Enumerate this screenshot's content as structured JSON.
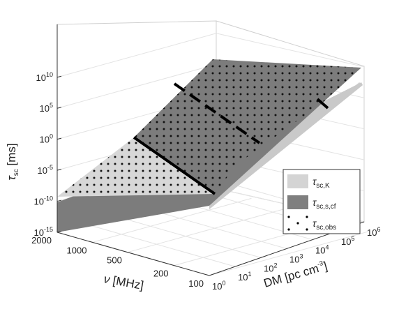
{
  "chart_data": {
    "type": "surface3d",
    "title": "",
    "axes": {
      "x": {
        "label_symbol": "ν",
        "label_rest": " [MHz]",
        "ticks": [
          "2000",
          "1000",
          "500",
          "200",
          "100"
        ],
        "range": [
          100,
          2000
        ],
        "scale": "log"
      },
      "y": {
        "label_main": "DM [pc cm",
        "label_sup": "-3",
        "label_end": "]",
        "ticks": [
          {
            "base": "10",
            "exp": "0"
          },
          {
            "base": "10",
            "exp": "1"
          },
          {
            "base": "10",
            "exp": "2"
          },
          {
            "base": "10",
            "exp": "3"
          },
          {
            "base": "10",
            "exp": "4"
          },
          {
            "base": "10",
            "exp": "5"
          },
          {
            "base": "10",
            "exp": "6"
          }
        ],
        "range": [
          1,
          1000000
        ],
        "scale": "log"
      },
      "z": {
        "label_symbol": "τ",
        "label_sub": "sc",
        "label_rest": " [ms]",
        "ticks": [
          {
            "base": "10",
            "exp": "-15"
          },
          {
            "base": "10",
            "exp": "-10"
          },
          {
            "base": "10",
            "exp": "-5"
          },
          {
            "base": "10",
            "exp": "0"
          },
          {
            "base": "10",
            "exp": "5"
          },
          {
            "base": "10",
            "exp": "10"
          }
        ],
        "range": [
          1e-15,
          1000000000000.0
        ],
        "scale": "log"
      }
    },
    "series": [
      {
        "name": "τsc,K",
        "symbol": "τ",
        "sub": "sc,K",
        "color": "#d4d4d4"
      },
      {
        "name": "τsc,s,cf",
        "symbol": "τ",
        "sub": "sc,s,cf",
        "color": "#7f7f7f"
      },
      {
        "name": "τsc,obs",
        "symbol": "τ",
        "sub": "sc,obs",
        "color": "#000000"
      }
    ],
    "grid": true,
    "legend_position": "right"
  }
}
